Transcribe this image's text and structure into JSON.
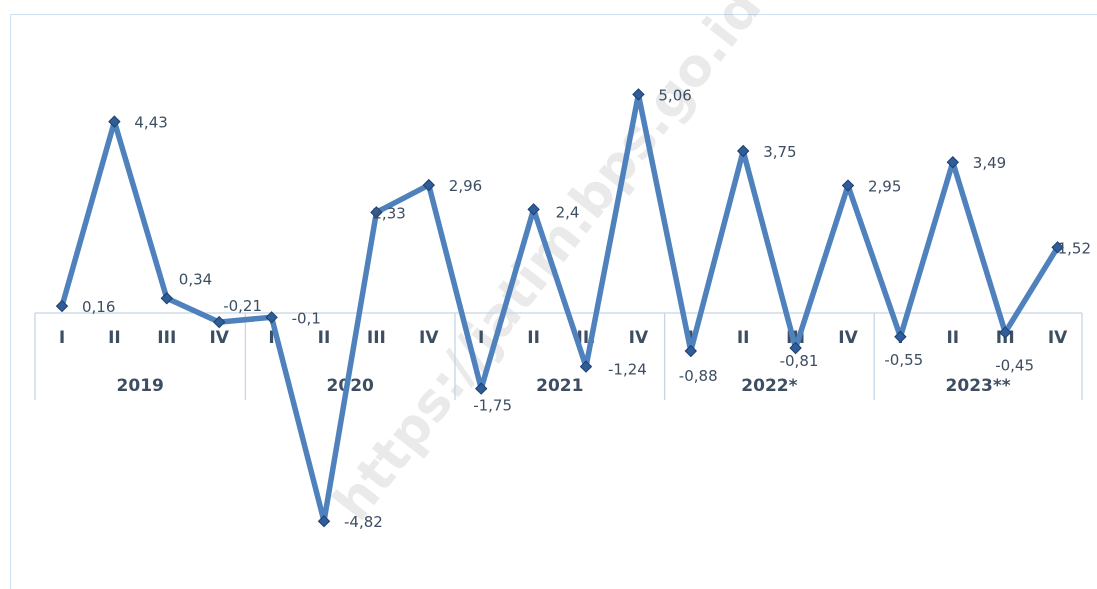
{
  "watermark": "https://jatim.bps.go.id",
  "chart_data": {
    "type": "line",
    "categories": [
      "I",
      "II",
      "III",
      "IV",
      "I",
      "II",
      "III",
      "IV",
      "I",
      "II",
      "III",
      "IV",
      "I",
      "II",
      "III",
      "IV",
      "I",
      "II",
      "III",
      "IV"
    ],
    "groups": [
      {
        "label": "2019",
        "start": 0,
        "count": 4
      },
      {
        "label": "2020",
        "start": 4,
        "count": 4
      },
      {
        "label": "2021",
        "start": 8,
        "count": 4
      },
      {
        "label": "2022*",
        "start": 12,
        "count": 4
      },
      {
        "label": "2023**",
        "start": 16,
        "count": 4
      }
    ],
    "series": [
      {
        "values": [
          0.16,
          4.43,
          0.34,
          -0.21,
          -0.1,
          -4.82,
          2.33,
          2.96,
          -1.75,
          2.4,
          -1.24,
          5.06,
          -0.88,
          3.75,
          -0.81,
          2.95,
          -0.55,
          3.49,
          -0.45,
          1.52
        ],
        "labels": [
          "0,16",
          "4,43",
          "0,34",
          "-0,21",
          "-0,1",
          "-4,82",
          "2,33",
          "2,96",
          "-1,75",
          "2,4",
          "-1,24",
          "5,06",
          "-0,88",
          "3,75",
          "-0,81",
          "2,95",
          "-0,55",
          "3,49",
          "-0,45",
          "1,52"
        ],
        "color": "#4f81bd"
      }
    ],
    "grid": false,
    "legend": "none"
  }
}
